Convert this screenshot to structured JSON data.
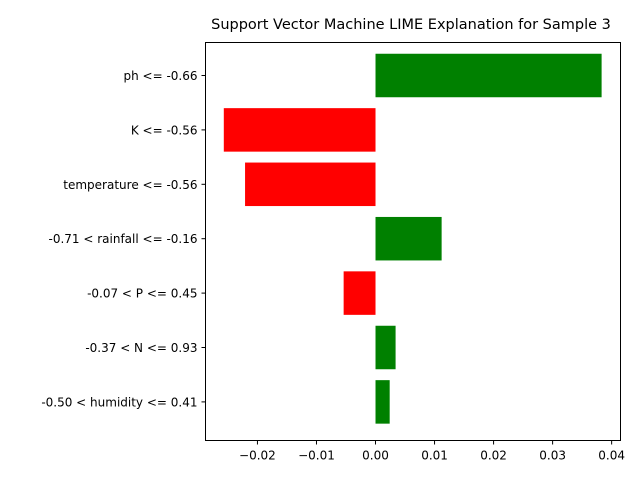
{
  "chart_data": {
    "type": "bar",
    "orientation": "horizontal",
    "title": "Support Vector Machine LIME Explanation for Sample 3",
    "xlabel": "",
    "ylabel": "",
    "categories": [
      "ph <= -0.66",
      "K <= -0.56",
      "temperature <= -0.56",
      "-0.71 < rainfall <= -0.16",
      "-0.07 < P <= 0.45",
      "-0.37 < N <= 0.93",
      "-0.50 < humidity <= 0.41"
    ],
    "values": [
      0.0383,
      -0.0257,
      -0.0221,
      0.0112,
      -0.0054,
      0.0034,
      0.0024
    ],
    "xlim": [
      -0.0288,
      0.0415
    ],
    "xticks": [
      -0.02,
      -0.01,
      0.0,
      0.01,
      0.02,
      0.03,
      0.04
    ],
    "xtick_labels": [
      "−0.02",
      "−0.01",
      "0.00",
      "0.01",
      "0.02",
      "0.03",
      "0.04"
    ],
    "colors": {
      "positive": "#008000",
      "negative": "#ff0000"
    },
    "grid": false
  }
}
